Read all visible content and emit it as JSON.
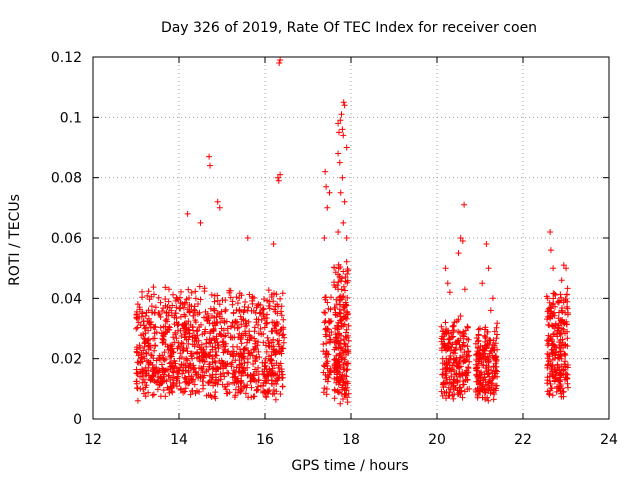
{
  "chart_data": {
    "type": "scatter",
    "title": "Day 326 of 2019, Rate Of TEC Index for receiver coen",
    "xlabel": "GPS time / hours",
    "ylabel": "ROTI / TECUs",
    "xlim": [
      12,
      24
    ],
    "ylim": [
      0,
      0.12
    ],
    "xticks": [
      "12",
      "14",
      "16",
      "18",
      "20",
      "22",
      "24"
    ],
    "yticks": [
      "0",
      "0.02",
      "0.04",
      "0.06",
      "0.08",
      "0.1",
      "0.12"
    ],
    "grid": true,
    "marker": "+",
    "color": "#ff0000",
    "clusters": [
      {
        "x_range": [
          13.0,
          16.45
        ],
        "y_base": [
          0.006,
          0.045
        ],
        "count": 1100
      },
      {
        "x_range": [
          17.35,
          17.55
        ],
        "y_base": [
          0.007,
          0.045
        ],
        "count": 60
      },
      {
        "x_range": [
          17.6,
          17.95
        ],
        "y_base": [
          0.005,
          0.055
        ],
        "count": 220
      },
      {
        "x_range": [
          20.1,
          20.75
        ],
        "y_base": [
          0.006,
          0.035
        ],
        "count": 220
      },
      {
        "x_range": [
          20.9,
          21.4
        ],
        "y_base": [
          0.006,
          0.033
        ],
        "count": 200
      },
      {
        "x_range": [
          22.55,
          23.05
        ],
        "y_base": [
          0.007,
          0.045
        ],
        "count": 230
      }
    ],
    "outliers": [
      [
        16.35,
        0.119
      ],
      [
        16.33,
        0.118
      ],
      [
        16.3,
        0.08
      ],
      [
        16.35,
        0.081
      ],
      [
        16.32,
        0.079
      ],
      [
        14.7,
        0.087
      ],
      [
        14.72,
        0.084
      ],
      [
        14.2,
        0.068
      ],
      [
        14.5,
        0.065
      ],
      [
        14.9,
        0.072
      ],
      [
        14.95,
        0.07
      ],
      [
        15.6,
        0.06
      ],
      [
        16.2,
        0.058
      ],
      [
        17.4,
        0.082
      ],
      [
        17.42,
        0.077
      ],
      [
        17.45,
        0.07
      ],
      [
        17.38,
        0.06
      ],
      [
        17.5,
        0.075
      ],
      [
        17.7,
        0.098
      ],
      [
        17.75,
        0.099
      ],
      [
        17.8,
        0.096
      ],
      [
        17.83,
        0.105
      ],
      [
        17.85,
        0.104
      ],
      [
        17.78,
        0.101
      ],
      [
        17.72,
        0.095
      ],
      [
        17.7,
        0.088
      ],
      [
        17.74,
        0.085
      ],
      [
        17.8,
        0.08
      ],
      [
        17.76,
        0.075
      ],
      [
        17.85,
        0.072
      ],
      [
        17.82,
        0.065
      ],
      [
        17.9,
        0.06
      ],
      [
        17.7,
        0.062
      ],
      [
        17.82,
        0.094
      ],
      [
        17.9,
        0.09
      ],
      [
        20.55,
        0.06
      ],
      [
        20.6,
        0.059
      ],
      [
        20.63,
        0.071
      ],
      [
        20.65,
        0.043
      ],
      [
        20.5,
        0.055
      ],
      [
        20.2,
        0.05
      ],
      [
        20.25,
        0.045
      ],
      [
        20.3,
        0.042
      ],
      [
        21.15,
        0.058
      ],
      [
        21.2,
        0.05
      ],
      [
        21.05,
        0.045
      ],
      [
        21.3,
        0.04
      ],
      [
        21.25,
        0.036
      ],
      [
        22.63,
        0.062
      ],
      [
        22.65,
        0.056
      ],
      [
        22.7,
        0.05
      ],
      [
        22.95,
        0.051
      ],
      [
        23.0,
        0.05
      ],
      [
        22.9,
        0.046
      ]
    ]
  }
}
